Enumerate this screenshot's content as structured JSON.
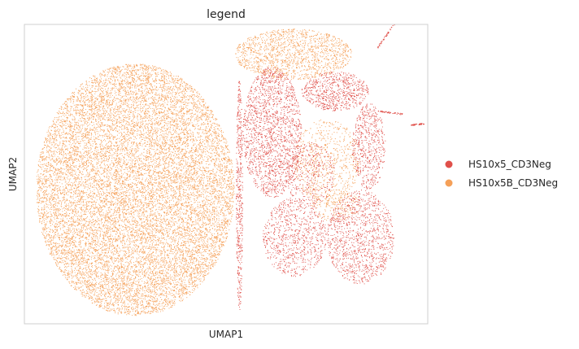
{
  "chart_data": {
    "type": "scatter",
    "title": "legend",
    "xlabel": "UMAP1",
    "ylabel": "UMAP2",
    "grid": false,
    "ticks": false,
    "legend_position": "right",
    "xlim": [
      -8,
      16
    ],
    "ylim": [
      -7,
      12
    ],
    "series": [
      {
        "name": "HS10x5_CD3Neg",
        "color": "#e0504a",
        "regions": [
          {
            "x": [
              4.6,
              5.0
            ],
            "y": [
              -6.2,
              8.5
            ],
            "density": 0.95
          },
          {
            "x": [
              5.0,
              8.5
            ],
            "y": [
              1.0,
              9.3
            ],
            "density": 0.7
          },
          {
            "x": [
              8.5,
              12.5
            ],
            "y": [
              6.5,
              9.0
            ],
            "density": 0.8
          },
          {
            "x": [
              11.5,
              13.5
            ],
            "y": [
              1.5,
              7.0
            ],
            "density": 0.6
          },
          {
            "x": [
              6.2,
              10.0
            ],
            "y": [
              -4.0,
              1.0
            ],
            "density": 0.5
          },
          {
            "x": [
              10.0,
              14.0
            ],
            "y": [
              -4.5,
              1.5
            ],
            "density": 0.55
          },
          {
            "x": [
              7.5,
              10.5
            ],
            "y": [
              0.5,
              4.5
            ],
            "density": 0.35
          }
        ],
        "streaks": [
          {
            "x": [
              13.0,
              14.0
            ],
            "y": [
              10.5,
              12.0
            ]
          },
          {
            "x": [
              13.0,
              14.5
            ],
            "y": [
              6.5,
              6.3
            ]
          },
          {
            "x": [
              15.0,
              15.8
            ],
            "y": [
              5.6,
              5.7
            ]
          }
        ]
      },
      {
        "name": "HS10x5B_CD3Neg",
        "color": "#f5a058",
        "regions": [
          {
            "x": [
              -7.3,
              4.5
            ],
            "y": [
              -6.5,
              9.5
            ],
            "density": 0.9
          },
          {
            "x": [
              4.5,
              11.5
            ],
            "y": [
              8.5,
              11.7
            ],
            "density": 0.75
          },
          {
            "x": [
              8.0,
              12.0
            ],
            "y": [
              0.5,
              6.0
            ],
            "density": 0.35
          },
          {
            "x": [
              9.0,
              12.0
            ],
            "y": [
              -0.5,
              1.5
            ],
            "density": 0.4
          }
        ]
      }
    ]
  }
}
